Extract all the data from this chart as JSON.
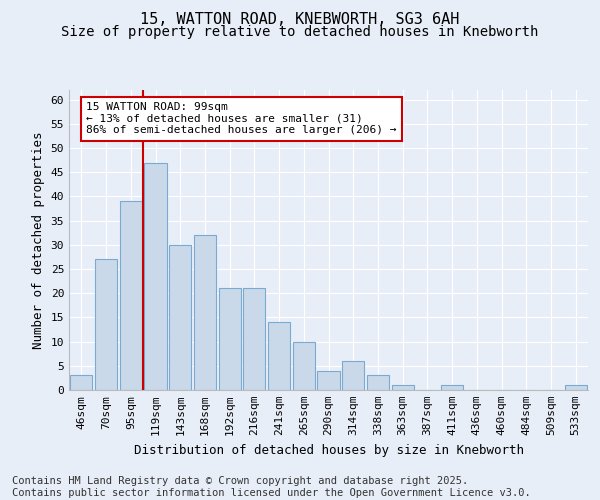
{
  "title_line1": "15, WATTON ROAD, KNEBWORTH, SG3 6AH",
  "title_line2": "Size of property relative to detached houses in Knebworth",
  "xlabel": "Distribution of detached houses by size in Knebworth",
  "ylabel": "Number of detached properties",
  "categories": [
    "46sqm",
    "70sqm",
    "95sqm",
    "119sqm",
    "143sqm",
    "168sqm",
    "192sqm",
    "216sqm",
    "241sqm",
    "265sqm",
    "290sqm",
    "314sqm",
    "338sqm",
    "363sqm",
    "387sqm",
    "411sqm",
    "436sqm",
    "460sqm",
    "484sqm",
    "509sqm",
    "533sqm"
  ],
  "values": [
    3,
    27,
    39,
    47,
    30,
    32,
    21,
    21,
    14,
    10,
    4,
    6,
    3,
    1,
    0,
    1,
    0,
    0,
    0,
    0,
    1
  ],
  "bar_color": "#c9d9ea",
  "bar_edge_color": "#7aaad0",
  "background_color": "#e8eef8",
  "plot_bg_color": "#e8eef8",
  "grid_color": "#ffffff",
  "vline_x": 2.5,
  "vline_color": "#cc0000",
  "annotation_text": "15 WATTON ROAD: 99sqm\n← 13% of detached houses are smaller (31)\n86% of semi-detached houses are larger (206) →",
  "annotation_box_facecolor": "#ffffff",
  "annotation_box_edge": "#cc0000",
  "ylim_max": 62,
  "yticks": [
    0,
    5,
    10,
    15,
    20,
    25,
    30,
    35,
    40,
    45,
    50,
    55,
    60
  ],
  "footnote": "Contains HM Land Registry data © Crown copyright and database right 2025.\nContains public sector information licensed under the Open Government Licence v3.0.",
  "title_fontsize": 11,
  "subtitle_fontsize": 10,
  "ylabel_fontsize": 9,
  "xlabel_fontsize": 9,
  "tick_fontsize": 8,
  "annotation_fontsize": 8,
  "footnote_fontsize": 7.5
}
